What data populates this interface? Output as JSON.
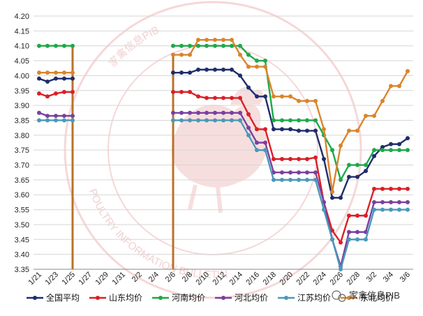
{
  "chart_data": {
    "type": "line",
    "title": "",
    "xlabel": "",
    "ylabel": "",
    "ylim": [
      3.35,
      4.2
    ],
    "y_ticks": [
      "3.35",
      "3.40",
      "3.45",
      "3.50",
      "3.55",
      "3.60",
      "3.65",
      "3.70",
      "3.75",
      "3.80",
      "3.85",
      "3.90",
      "3.95",
      "4.00",
      "4.05",
      "4.10",
      "4.15",
      "4.20"
    ],
    "x_tick_labels": [
      "1/21",
      "1/23",
      "1/25",
      "1/27",
      "1/29",
      "1/31",
      "2/2",
      "2/4",
      "2/6",
      "2/8",
      "2/10",
      "2/12",
      "2/14",
      "2/16",
      "2/18",
      "2/20",
      "2/22",
      "2/24",
      "2/26",
      "2/28",
      "3/2",
      "3/4",
      "3/6"
    ],
    "dates": [
      "1/21",
      "1/22",
      "1/23",
      "1/24",
      "1/25",
      "1/26",
      "1/27",
      "1/28",
      "1/29",
      "1/30",
      "1/31",
      "2/1",
      "2/2",
      "2/3",
      "2/4",
      "2/5",
      "2/6",
      "2/7",
      "2/8",
      "2/9",
      "2/10",
      "2/11",
      "2/12",
      "2/13",
      "2/14",
      "2/15",
      "2/16",
      "2/17",
      "2/18",
      "2/19",
      "2/20",
      "2/21",
      "2/22",
      "2/23",
      "2/24",
      "2/25",
      "2/26",
      "2/27",
      "2/28",
      "3/1",
      "3/2",
      "3/3",
      "3/4",
      "3/5",
      "3/6"
    ],
    "grid": "horizontal",
    "legend_position": "bottom",
    "series": [
      {
        "name": "全国平均",
        "color": "#1f2d6b",
        "values": [
          3.99,
          3.98,
          3.99,
          3.99,
          3.99,
          null,
          null,
          null,
          null,
          null,
          null,
          null,
          null,
          null,
          null,
          null,
          4.01,
          4.01,
          4.01,
          4.02,
          4.02,
          4.02,
          4.02,
          4.02,
          4.0,
          3.96,
          3.93,
          3.93,
          3.82,
          3.82,
          3.82,
          3.815,
          3.815,
          3.815,
          3.72,
          3.59,
          3.59,
          3.66,
          3.66,
          3.68,
          3.73,
          3.76,
          3.77,
          3.77,
          3.79
        ]
      },
      {
        "name": "山东均价",
        "color": "#d91f26",
        "values": [
          3.94,
          3.93,
          3.94,
          3.945,
          3.945,
          null,
          null,
          null,
          null,
          null,
          null,
          null,
          null,
          null,
          null,
          null,
          3.945,
          3.945,
          3.945,
          3.93,
          3.925,
          3.925,
          3.925,
          3.925,
          3.925,
          3.87,
          3.82,
          3.82,
          3.72,
          3.72,
          3.72,
          3.72,
          3.72,
          3.725,
          3.575,
          3.48,
          3.44,
          3.53,
          3.53,
          3.53,
          3.62,
          3.62,
          3.62,
          3.62,
          3.62
        ]
      },
      {
        "name": "河南均价",
        "color": "#1ea84a",
        "values": [
          4.1,
          4.1,
          4.1,
          4.1,
          4.1,
          null,
          null,
          null,
          null,
          null,
          null,
          null,
          null,
          null,
          null,
          null,
          4.1,
          4.1,
          4.1,
          4.1,
          4.1,
          4.1,
          4.1,
          4.1,
          4.1,
          4.07,
          4.05,
          4.05,
          3.85,
          3.85,
          3.85,
          3.85,
          3.85,
          3.85,
          3.8,
          3.75,
          3.65,
          3.7,
          3.7,
          3.7,
          3.75,
          3.75,
          3.75,
          3.75,
          3.75
        ]
      },
      {
        "name": "河北均价",
        "color": "#7a3fa0",
        "values": [
          3.875,
          3.865,
          3.865,
          3.865,
          3.865,
          null,
          null,
          null,
          null,
          null,
          null,
          null,
          null,
          null,
          null,
          null,
          3.875,
          3.875,
          3.875,
          3.875,
          3.875,
          3.875,
          3.875,
          3.875,
          3.875,
          3.825,
          3.775,
          3.775,
          3.675,
          3.675,
          3.675,
          3.675,
          3.675,
          3.675,
          3.575,
          3.45,
          3.36,
          3.475,
          3.475,
          3.475,
          3.575,
          3.575,
          3.575,
          3.575,
          3.575
        ]
      },
      {
        "name": "江苏均价",
        "color": "#4a98b8",
        "values": [
          3.85,
          3.85,
          3.85,
          3.85,
          3.85,
          null,
          null,
          null,
          null,
          null,
          null,
          null,
          null,
          null,
          null,
          null,
          3.85,
          3.85,
          3.85,
          3.85,
          3.85,
          3.85,
          3.85,
          3.85,
          3.85,
          3.8,
          3.75,
          3.75,
          3.65,
          3.65,
          3.65,
          3.65,
          3.65,
          3.65,
          3.55,
          3.45,
          3.35,
          3.45,
          3.45,
          3.45,
          3.55,
          3.55,
          3.55,
          3.55,
          3.55
        ]
      },
      {
        "name": "东北均价",
        "color": "#d9852b",
        "values": [
          4.01,
          4.01,
          4.01,
          4.01,
          4.01,
          null,
          null,
          null,
          null,
          null,
          null,
          null,
          null,
          null,
          null,
          null,
          4.07,
          4.07,
          4.07,
          4.12,
          4.12,
          4.12,
          4.12,
          4.12,
          4.07,
          4.03,
          4.03,
          4.03,
          3.93,
          3.93,
          3.93,
          3.915,
          3.915,
          3.915,
          3.82,
          3.61,
          3.765,
          3.815,
          3.815,
          3.865,
          3.865,
          3.915,
          3.965,
          3.965,
          4.015
        ]
      }
    ],
    "gap_vertical_drops": [
      {
        "after_date": "1/25",
        "from": 4.1,
        "to": 3.35,
        "color": "#b8722a"
      },
      {
        "before_date": "2/6",
        "from": 3.35,
        "to": 4.07,
        "color": "#b8722a"
      }
    ]
  },
  "legend_icon_names": [
    "line-marker-icon"
  ],
  "watermark": {
    "icon": "rooster-seal-icon",
    "arc_text_top": "家禽信息PIB",
    "arc_text_bottom": "POULTRY INFORMATION BULLETIN"
  },
  "source_badge": {
    "icon": "wechat-icon",
    "text": "家禽信息PIB"
  }
}
